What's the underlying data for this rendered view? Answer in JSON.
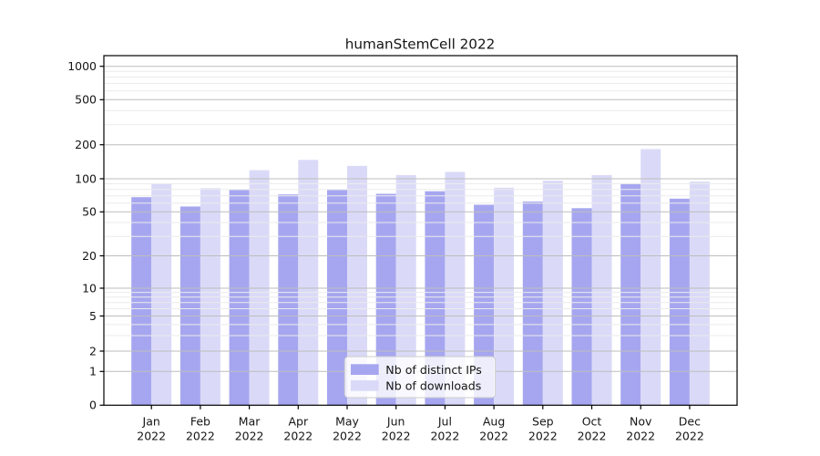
{
  "figure": {
    "title": "humanStemCell 2022"
  },
  "colors": {
    "ips_bar": "#a6a6f0",
    "downloads_bar": "#dadaf8",
    "grid_major": "#bdbdbd",
    "grid_minor": "#ebebeb",
    "axis": "#000000",
    "text": "#151515",
    "legend_border": "#cccccc",
    "legend_background": "rgba(255,255,255,0.8)"
  },
  "legend": {
    "position": "lower center",
    "items": [
      {
        "label": "Nb of distinct IPs"
      },
      {
        "label": "Nb of downloads"
      }
    ]
  },
  "chart_data": {
    "type": "bar",
    "title": "humanStemCell 2022",
    "categories": [
      "Jan 2022",
      "Feb 2022",
      "Mar 2022",
      "Apr 2022",
      "May 2022",
      "Jun 2022",
      "Jul 2022",
      "Aug 2022",
      "Sep 2022",
      "Oct 2022",
      "Nov 2022",
      "Dec 2022"
    ],
    "x_tick_months": [
      "Jan",
      "Feb",
      "Mar",
      "Apr",
      "May",
      "Jun",
      "Jul",
      "Aug",
      "Sep",
      "Oct",
      "Nov",
      "Dec"
    ],
    "x_tick_year": "2022",
    "series": [
      {
        "name": "Nb of distinct IPs",
        "color": "#a6a6f0",
        "values": [
          68,
          56,
          79,
          72,
          79,
          73,
          77,
          58,
          62,
          54,
          91,
          66
        ]
      },
      {
        "name": "Nb of downloads",
        "color": "#dadaf8",
        "values": [
          91,
          82,
          119,
          147,
          130,
          108,
          115,
          83,
          96,
          108,
          183,
          94
        ]
      }
    ],
    "yscale": "symlog",
    "ylim": [
      0,
      1000
    ],
    "y_major_ticks": [
      0,
      1,
      2,
      5,
      10,
      20,
      50,
      100,
      200,
      500,
      1000
    ],
    "y_tick_labels": [
      "0",
      "1",
      "2",
      "5",
      "10",
      "20",
      "50",
      "100",
      "200",
      "500",
      "1000"
    ],
    "y_minor_ticks": [
      3,
      4,
      6,
      7,
      8,
      9,
      30,
      40,
      60,
      70,
      80,
      90,
      300,
      400,
      600,
      700,
      800,
      900
    ],
    "grid": true,
    "grid_above_bars": true,
    "legend_position": "lower center",
    "xlabel": "",
    "ylabel": ""
  }
}
